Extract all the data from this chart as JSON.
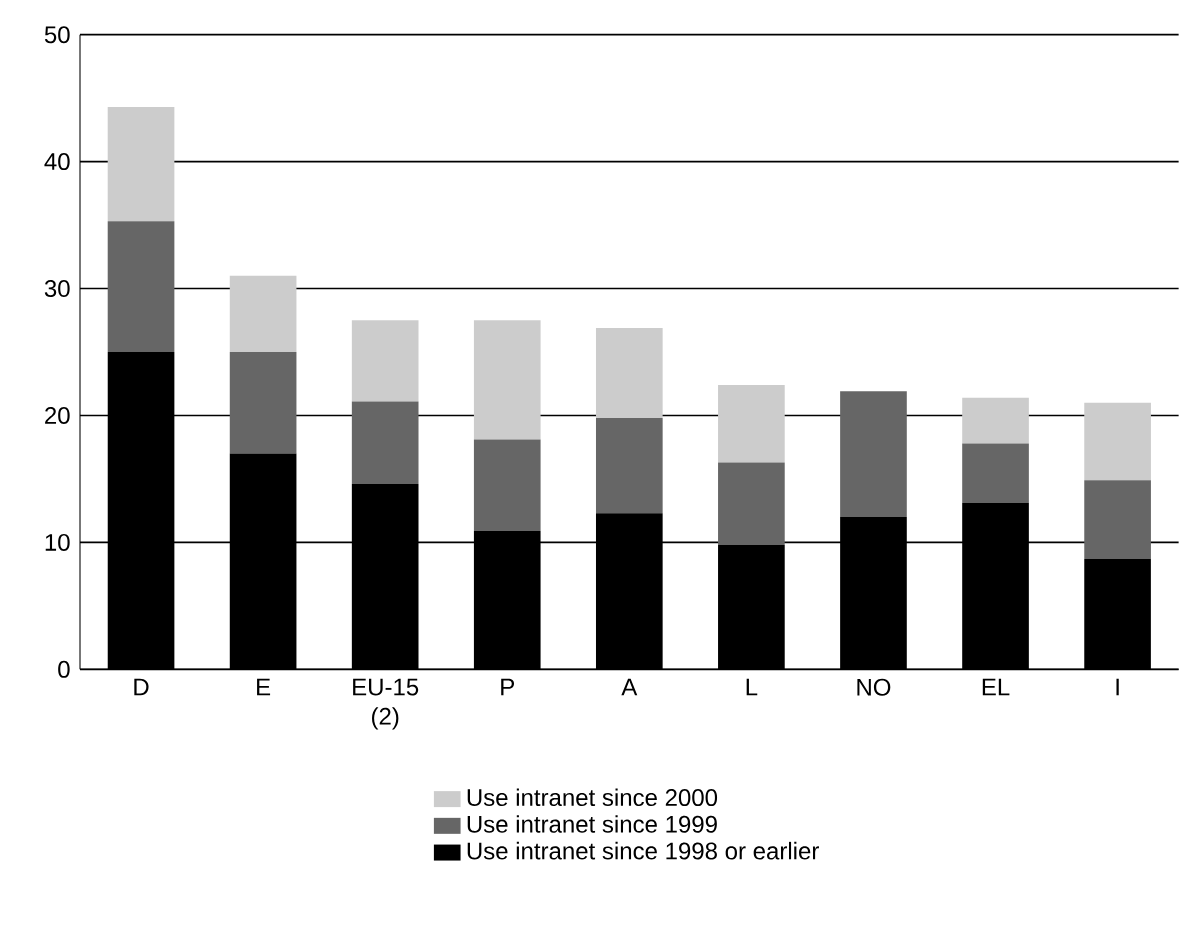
{
  "chart_data": {
    "type": "bar",
    "stacked": true,
    "categories": [
      "D",
      "E",
      "EU-15 (2)",
      "P",
      "A",
      "L",
      "NO",
      "EL",
      "I"
    ],
    "series": [
      {
        "name": "Use intranet since 1998 or earlier",
        "color": "#000000",
        "values": [
          25,
          17,
          14.6,
          10.9,
          12.3,
          9.8,
          12,
          13.1,
          8.7
        ]
      },
      {
        "name": "Use intranet since 1999",
        "color": "#666666",
        "values": [
          10.3,
          8,
          6.5,
          7.2,
          7.5,
          6.5,
          9.9,
          4.7,
          6.2
        ]
      },
      {
        "name": "Use intranet since 2000",
        "color": "#cccccc",
        "values": [
          9,
          6,
          6.4,
          9.4,
          7.1,
          6.1,
          null,
          3.6,
          6.1
        ]
      }
    ],
    "ylim": [
      0,
      50
    ],
    "yticks": [
      0,
      10,
      20,
      30,
      40,
      50
    ],
    "grid": "y",
    "legend": "bottom"
  }
}
